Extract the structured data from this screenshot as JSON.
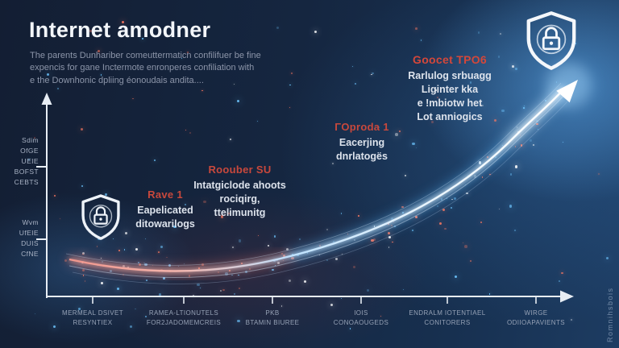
{
  "header": {
    "title": "Internet amodner",
    "subtitle_lines": [
      "The parents Dunhariber comeuttermaticn confilifuer be fine",
      "expencis for gane Inctermote enronperes confiliation with",
      "e the Downhonic dpliing éonoudais andita...."
    ]
  },
  "colors": {
    "background": "#152640",
    "accent_red": "#c8483c",
    "text_light": "#dde3ec",
    "text_muted": "#8c95a9",
    "axis": "#e7edf4",
    "glow_blue": "#5fb8ff",
    "glow_red": "#ff8070"
  },
  "annotations": [
    {
      "heading": "Rave 1",
      "lines": [
        "Eapelicated",
        "ditowarilogs"
      ]
    },
    {
      "heading": "Roouber SU",
      "lines": [
        "Intatgiclode ahoots",
        "rociqirg,",
        "ttelimunitg"
      ]
    },
    {
      "heading": "ΓOproda 1",
      "lines": [
        "Eacerjing",
        "dnrlatogёs"
      ]
    },
    {
      "heading": "Goocet TPO6",
      "lines": [
        "Rarlulog srbuagg",
        "Liginter kka",
        "e !mbiotw het",
        "Lot anniogics"
      ]
    }
  ],
  "side_text": "Romnihsbois",
  "chart_data": {
    "type": "line",
    "title": "Internet amodner",
    "style": "glowing exponential growth curve with arrow tip, red-pink glow at left turning blue-white toward upper right, starfield particles",
    "x_tick_labels": [
      {
        "line1": "MERMEAL DSIVET",
        "line2": "RESYNTIEX"
      },
      {
        "line1": "RAMEA-LTIONUTELS",
        "line2": "FOR2JADOMEMCREIS"
      },
      {
        "line1": "PKB",
        "line2": "BTAMIN BIUREE"
      },
      {
        "line1": "IOIS",
        "line2": "CONOAOUGEDS"
      },
      {
        "line1": "ENDRALM IOTENTIAEL",
        "line2": "CONITORERS"
      },
      {
        "line1": "WIRGE",
        "line2": "ODIIOAPAVIENTS"
      }
    ],
    "y_groups": [
      {
        "lines": [
          "Sdim",
          "OfGE",
          "UEIE",
          "BOFST",
          "CEBTS"
        ]
      },
      {
        "lines": [
          "Wvm",
          "UfEIE",
          "DUIS",
          "CfNE"
        ]
      }
    ],
    "values_normalized": [
      0.17,
      0.12,
      0.19,
      0.29,
      0.49,
      0.91
    ],
    "xlim": [
      "origin",
      "arrow"
    ],
    "ylim": [
      0,
      1
    ],
    "grid": false,
    "legend": false
  }
}
